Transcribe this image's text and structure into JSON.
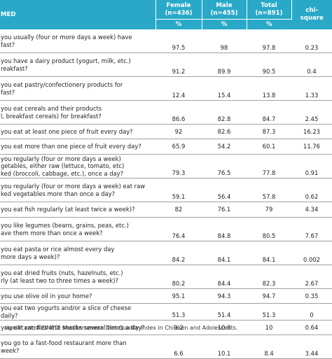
{
  "header": {
    "item": "MED",
    "female_title": "Female",
    "female_n": "(n=436)",
    "male_title": "Male",
    "male_n": "(n=455)",
    "total_title": "Total",
    "total_n": "(n=891)",
    "chi_line1": "chi-",
    "chi_line2": "square",
    "pct": "%"
  },
  "rows": [
    {
      "lines": [
        "you usually (four or more days a week) have",
        "fast?"
      ],
      "female": "97.5",
      "male": "98",
      "total": "97.8",
      "chi": "0.23",
      "h": "r3"
    },
    {
      "lines": [
        "you have a dairy product (yogurt, milk, etc.)",
        "reakfast?"
      ],
      "female": "91.2",
      "male": "89.9",
      "total": "90.5",
      "chi": "0.4",
      "h": "r3"
    },
    {
      "lines": [
        "you eat pastry/confectionery products for",
        "fast?"
      ],
      "female": "12.4",
      "male": "15.4",
      "total": "13.8",
      "chi": "1.33",
      "h": "r3"
    },
    {
      "lines": [
        "you eat cereals and their products",
        "l, breakfast cereals) for breakfast?"
      ],
      "female": "86.6",
      "male": "82.8",
      "total": "84.7",
      "chi": "2.45",
      "h": "r3"
    },
    {
      "lines": [
        "you eat at least one piece of fruit every day?"
      ],
      "female": "92",
      "male": "82.6",
      "total": "87.3",
      "chi": "16.23",
      "h": "r1"
    },
    {
      "lines": [
        "you eat more than one piece of fruit every day?"
      ],
      "female": "65.9",
      "male": "54.2",
      "total": "60.1",
      "chi": "11.76",
      "h": "r2"
    },
    {
      "lines": [
        "you regularly (four or more days a week)",
        "getables, either raw (lettuce, tomato, etc)",
        "ked (broccoli, cabbage, etc.), once a day?"
      ],
      "female": "79.3",
      "male": "76.5",
      "total": "77.8",
      "chi": "0.91",
      "h": "r3"
    },
    {
      "lines": [
        "you regularly (four or more days a week) eat raw",
        "ked vegetables more than once a day?"
      ],
      "female": "59.1",
      "male": "56.4",
      "total": "57.8",
      "chi": "0.62",
      "h": "r3"
    },
    {
      "lines": [
        "you eat fish regularly (at least twice a week)?"
      ],
      "female": "82",
      "male": "76.1",
      "total": "79",
      "chi": "4.34",
      "h": "r2"
    },
    {
      "lines": [
        "you like legumes (beans, grains, peas, etc.)",
        "ave them more than once a week?"
      ],
      "female": "76.4",
      "male": "84.8",
      "total": "80.5",
      "chi": "7.67",
      "h": "r3"
    },
    {
      "lines": [
        "you eat pasta or rice almost every day",
        "more days a week)?"
      ],
      "female": "84.2",
      "male": "84.1",
      "total": "84.1",
      "chi": "0.002",
      "h": "r3"
    },
    {
      "lines": [
        "you eat dried fruits (nuts, hazelnuts, etc.)",
        "rly (at least two to three times a week)?"
      ],
      "female": "80.2",
      "male": "84.4",
      "total": "82.3",
      "chi": "2.67",
      "h": "r3"
    },
    {
      "lines": [
        "you use olive oil in your home?"
      ],
      "female": "95.1",
      "male": "94.3",
      "total": "94.7",
      "chi": "0.35",
      "h": "r1"
    },
    {
      "lines": [
        "you eat two yogurts and/or a slice of cheese",
        "daily?"
      ],
      "female": "51.3",
      "male": "51.4",
      "total": "51.3",
      "chi": "0",
      "h": "r2"
    },
    {
      "lines": [
        "you eat candies and snacks several times a day?"
      ],
      "female": "9.2",
      "male": "10.8",
      "total": "10",
      "chi": "0.64",
      "h": "r1"
    },
    {
      "lines": [
        "you go to a fast-food restaurant more than",
        "week?"
      ],
      "female": "6.6",
      "male": "10.1",
      "total": "8.4",
      "chi": "3.44",
      "h": "r3"
    }
  ],
  "footnote": "significant; KIDMED: Mediterranean Diet Quality Index in Children and Adolescents."
}
